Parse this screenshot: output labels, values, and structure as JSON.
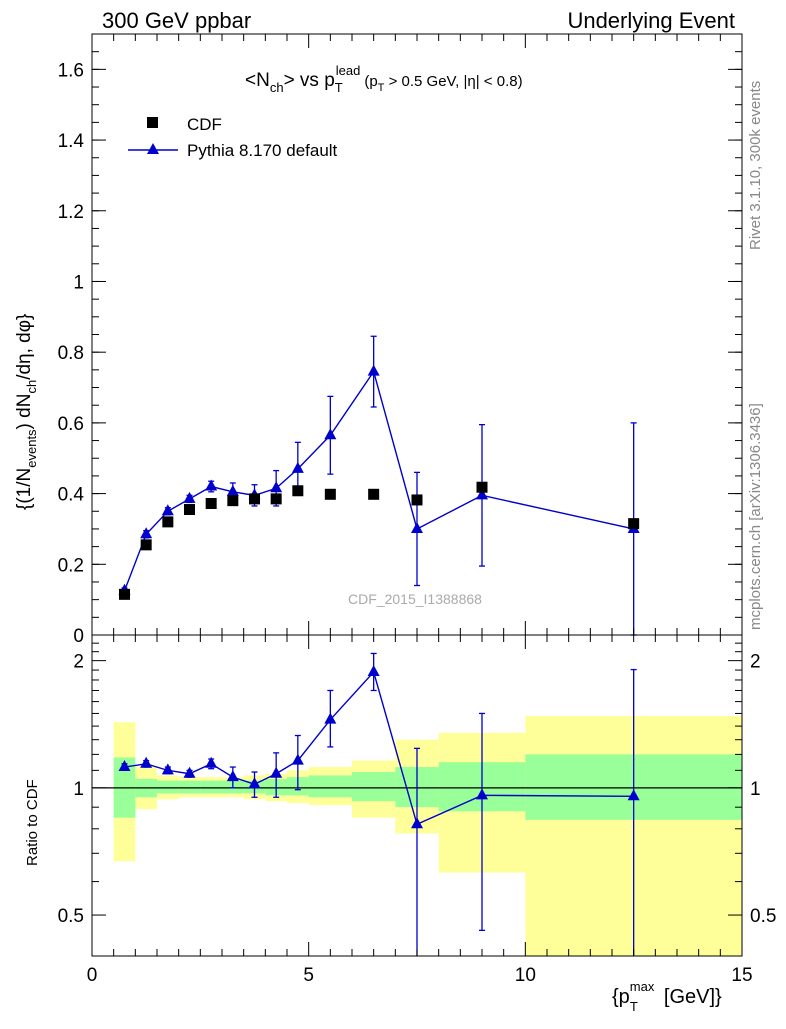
{
  "header": {
    "left": "300 GeV ppbar",
    "right": "Underlying Event"
  },
  "side_labels": {
    "rivet": "Rivet 3.1.10,  300k events",
    "mcplots": "mcplots.cern.ch [arXiv:1306.3436]"
  },
  "chart_data": [
    {
      "type": "scatter",
      "title": "<Nch> vs pT^lead (pT > 0.5 GeV, |η| < 0.8)",
      "ylabel": "{(1/N_events) dN_ch/dη, dφ}",
      "watermark": "CDF_2015_I1388868",
      "xlim": [
        0,
        15
      ],
      "ylim": [
        0,
        1.7
      ],
      "yticks": [
        0,
        0.2,
        0.4,
        0.6,
        0.8,
        1,
        1.2,
        1.4,
        1.6
      ],
      "ytick_labels": [
        "0",
        "0.2",
        "0.4",
        "0.6",
        "0.8",
        "1",
        "1.2",
        "1.4",
        "1.6"
      ],
      "legend": {
        "position": "top-left",
        "entries": [
          "CDF",
          "Pythia 8.170 default"
        ]
      },
      "series": [
        {
          "name": "CDF",
          "marker": "square",
          "color": "#000000",
          "x": [
            0.75,
            1.25,
            1.75,
            2.25,
            2.75,
            3.25,
            3.75,
            4.25,
            4.75,
            5.5,
            6.5,
            7.5,
            9.0,
            12.5
          ],
          "y": [
            0.115,
            0.255,
            0.32,
            0.355,
            0.372,
            0.38,
            0.385,
            0.385,
            0.408,
            0.398,
            0.398,
            0.382,
            0.418,
            0.315
          ]
        },
        {
          "name": "Pythia 8.170 default",
          "marker": "triangle",
          "color": "#0000cc",
          "x": [
            0.75,
            1.25,
            1.75,
            2.25,
            2.75,
            3.25,
            3.75,
            4.25,
            4.75,
            5.5,
            6.5,
            7.5,
            9.0,
            12.5
          ],
          "y": [
            0.125,
            0.285,
            0.35,
            0.385,
            0.42,
            0.405,
            0.395,
            0.415,
            0.47,
            0.565,
            0.745,
            0.3,
            0.395,
            0.3
          ],
          "err": [
            0.008,
            0.01,
            0.01,
            0.01,
            0.015,
            0.025,
            0.03,
            0.05,
            0.075,
            0.11,
            0.1,
            0.16,
            0.2,
            0.3
          ]
        }
      ]
    },
    {
      "type": "scatter",
      "title": "",
      "ylabel": "Ratio to CDF",
      "xlabel": "{pT^max [GeV]}",
      "xlim": [
        0,
        15
      ],
      "ylim": [
        0.4,
        2.3
      ],
      "xticks": [
        0,
        5,
        10,
        15
      ],
      "xtick_labels": [
        "0",
        "5",
        "10",
        "15"
      ],
      "yticks": [
        0.5,
        1,
        2
      ],
      "ytick_labels": [
        "0.5",
        "1",
        "2"
      ],
      "bands": {
        "x_edges": [
          0.5,
          1.0,
          1.5,
          2.0,
          2.5,
          3.0,
          3.5,
          4.0,
          4.5,
          5.0,
          6.0,
          7.0,
          8.0,
          10.0,
          15.0
        ],
        "green_low": [
          0.85,
          0.95,
          0.97,
          0.97,
          0.97,
          0.97,
          0.97,
          0.96,
          0.96,
          0.95,
          0.93,
          0.9,
          0.88,
          0.84,
          0.66
        ],
        "green_high": [
          1.18,
          1.05,
          1.04,
          1.04,
          1.04,
          1.04,
          1.04,
          1.05,
          1.06,
          1.07,
          1.09,
          1.12,
          1.15,
          1.2,
          1.44
        ],
        "yellow_low": [
          0.67,
          0.89,
          0.94,
          0.95,
          0.95,
          0.95,
          0.94,
          0.93,
          0.92,
          0.91,
          0.85,
          0.78,
          0.63,
          0.35,
          0.35
        ],
        "yellow_high": [
          1.43,
          1.12,
          1.07,
          1.06,
          1.06,
          1.06,
          1.07,
          1.08,
          1.1,
          1.12,
          1.16,
          1.3,
          1.35,
          1.48,
          1.8
        ],
        "green_color": "#99ff99",
        "yellow_color": "#ffff99"
      },
      "series": [
        {
          "name": "Pythia 8.170 default",
          "marker": "triangle",
          "color": "#0000cc",
          "x": [
            0.75,
            1.25,
            1.75,
            2.25,
            2.75,
            3.25,
            3.75,
            4.25,
            4.75,
            5.5,
            6.5,
            7.5,
            9.0,
            12.5
          ],
          "y": [
            1.12,
            1.14,
            1.1,
            1.08,
            1.14,
            1.06,
            1.02,
            1.08,
            1.16,
            1.45,
            1.88,
            0.82,
            0.96,
            0.955
          ],
          "err_low": [
            0.02,
            0.02,
            0.02,
            0.02,
            0.03,
            0.06,
            0.07,
            0.13,
            0.17,
            0.2,
            0.18,
            0.5,
            0.5,
            0.6
          ],
          "err_high": [
            0.02,
            0.02,
            0.02,
            0.02,
            0.03,
            0.06,
            0.07,
            0.13,
            0.17,
            0.25,
            0.2,
            0.42,
            0.54,
            0.95
          ]
        }
      ]
    }
  ]
}
